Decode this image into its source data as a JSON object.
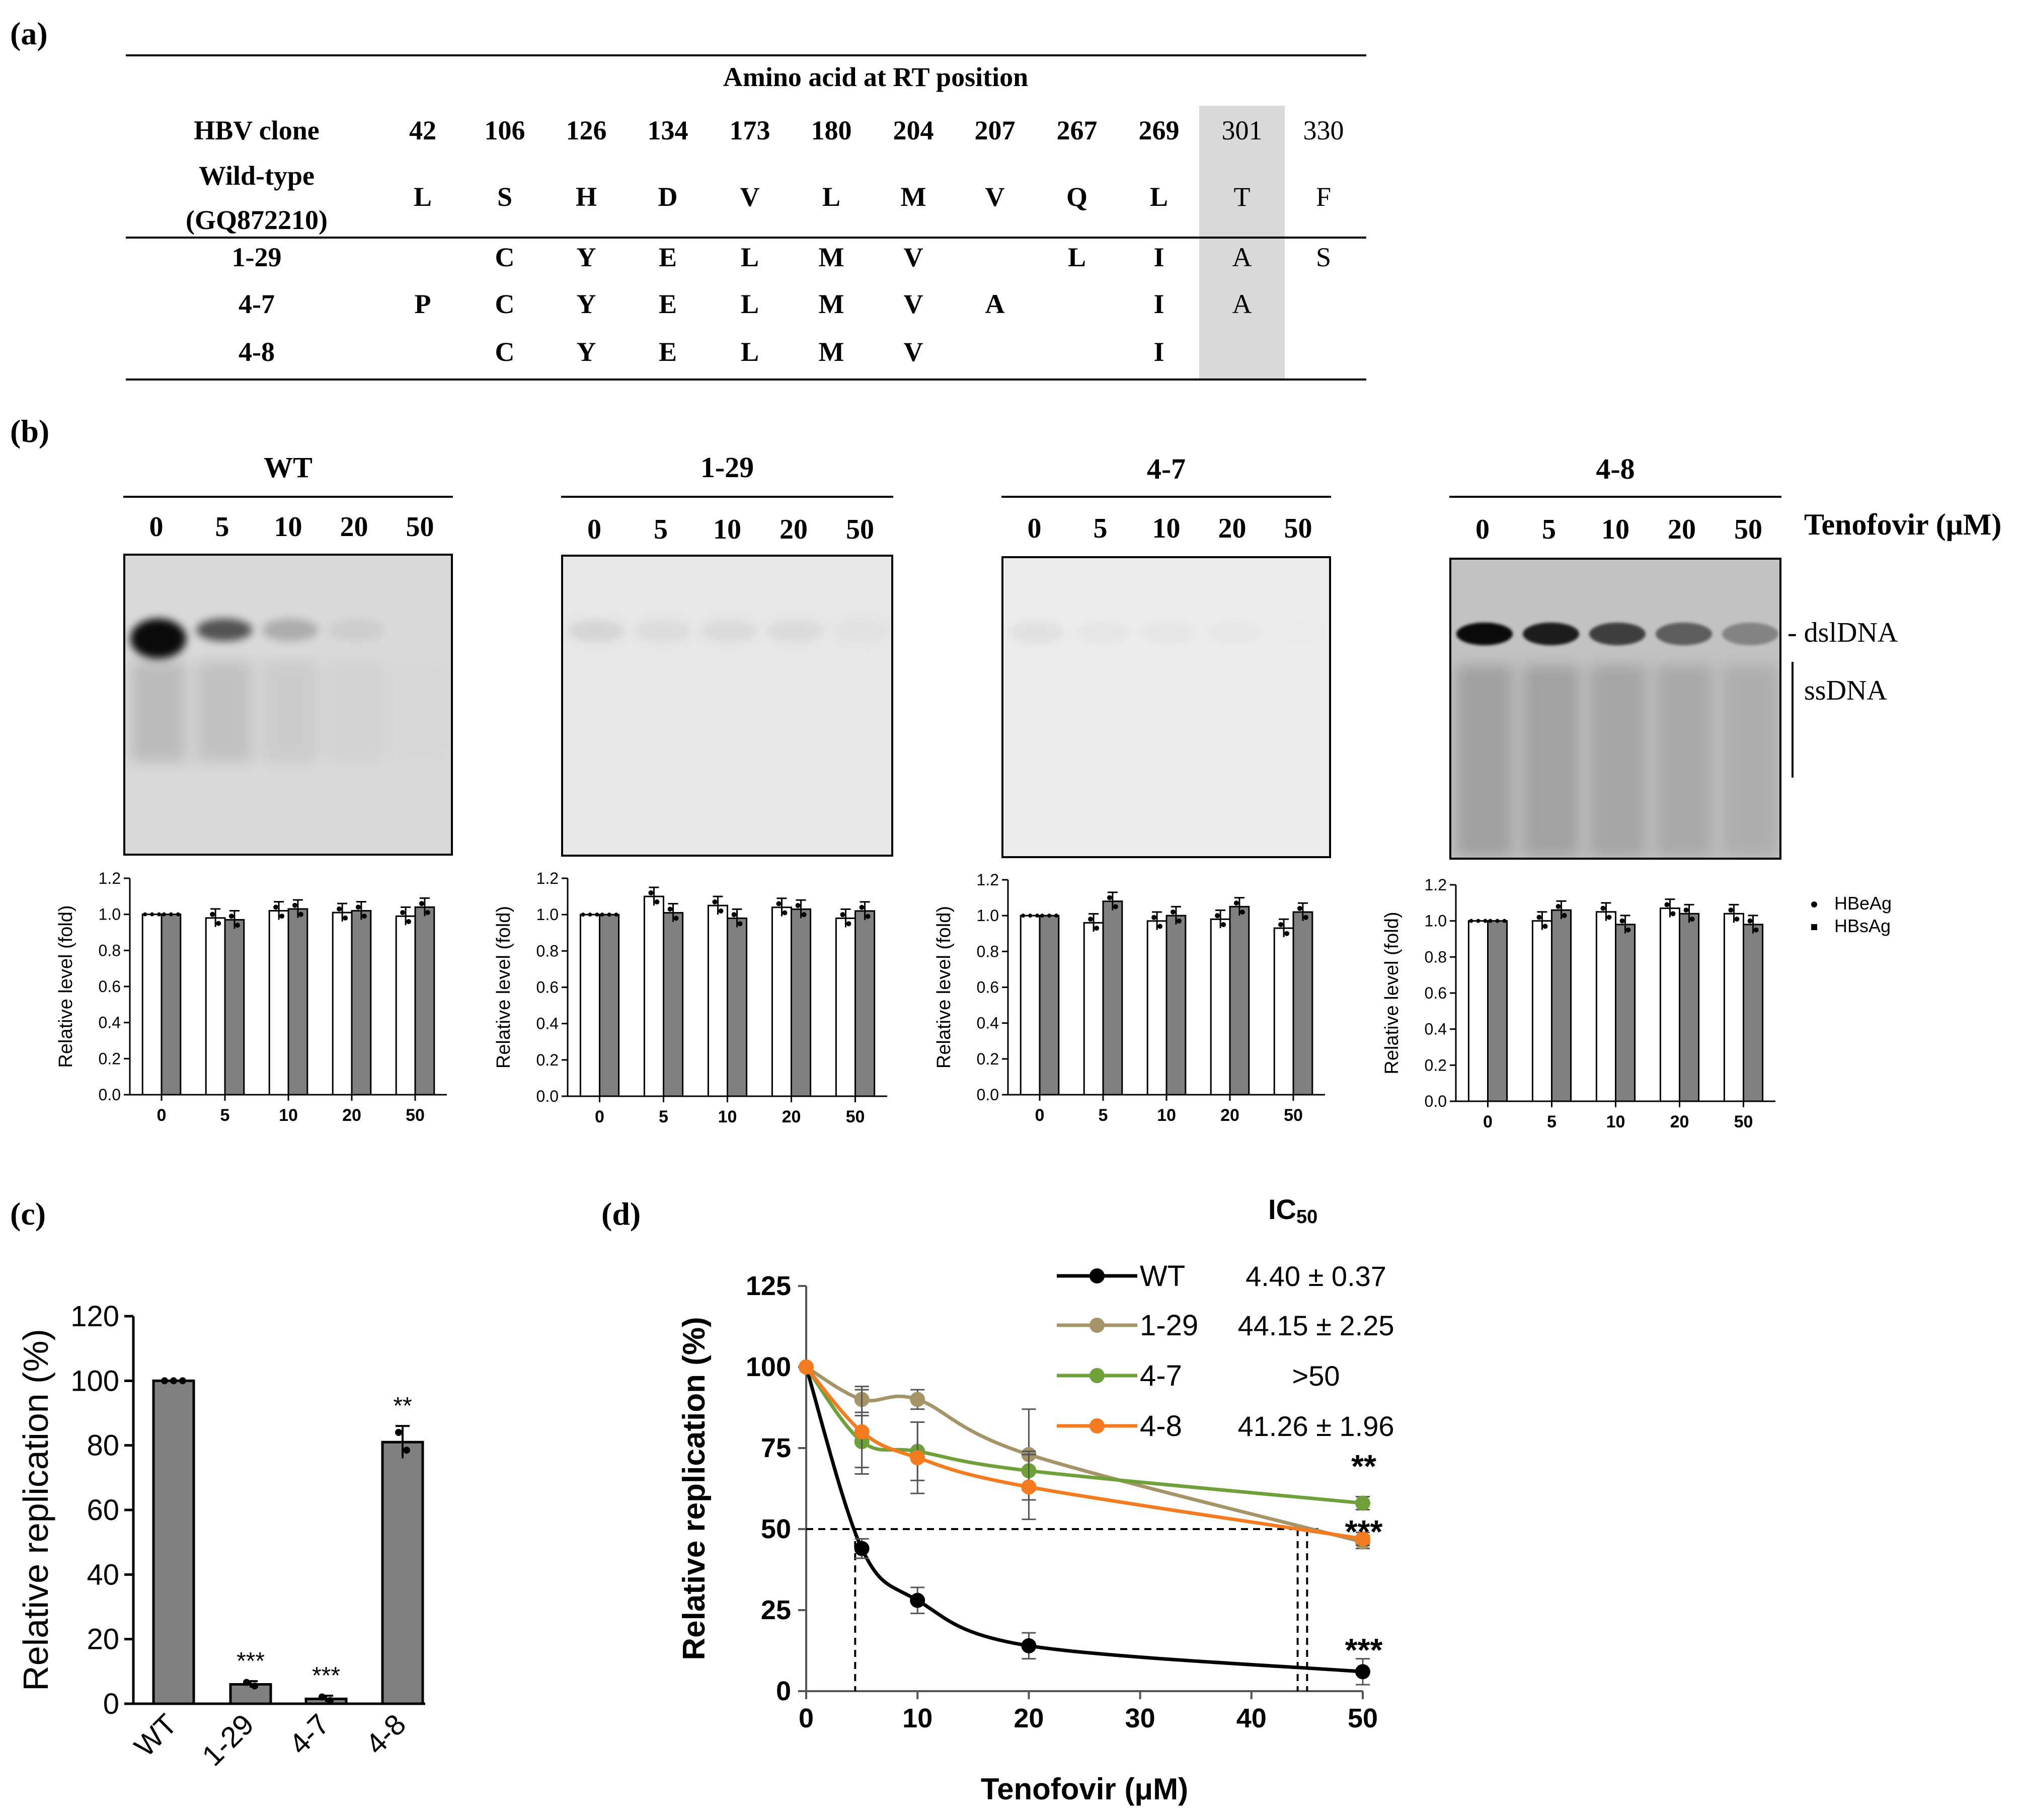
{
  "panel_labels": {
    "a": "(a)",
    "b": "(b)",
    "c": "(c)",
    "d": "(d)"
  },
  "table": {
    "title": "Amino acid at RT position",
    "clone_header": "HBV clone",
    "positions": [
      "42",
      "106",
      "126",
      "134",
      "173",
      "180",
      "204",
      "207",
      "267",
      "269",
      "301",
      "330"
    ],
    "wildtype_label_line1": "Wild-type",
    "wildtype_label_line2": "(GQ872210)",
    "wildtype": [
      "L",
      "S",
      "H",
      "D",
      "V",
      "L",
      "M",
      "V",
      "Q",
      "L",
      "T",
      "F"
    ],
    "rows": [
      {
        "clone": "1-29",
        "values": [
          "",
          "C",
          "Y",
          "E",
          "L",
          "M",
          "V",
          "",
          "L",
          "I",
          "A",
          "S"
        ]
      },
      {
        "clone": "4-7",
        "values": [
          "P",
          "C",
          "Y",
          "E",
          "L",
          "M",
          "V",
          "A",
          "",
          "I",
          "A",
          ""
        ]
      },
      {
        "clone": "4-8",
        "values": [
          "",
          "C",
          "Y",
          "E",
          "L",
          "M",
          "V",
          "",
          "",
          "I",
          "",
          ""
        ]
      }
    ],
    "highlight_color": "#d9d9d9"
  },
  "blots": {
    "axis_label": "Tenofovir (μM)",
    "concentrations": [
      "0",
      "5",
      "10",
      "20",
      "50"
    ],
    "band_dsl": "- dslDNA",
    "band_ss": "ssDNA",
    "panels": [
      {
        "name": "WT"
      },
      {
        "name": "1-29"
      },
      {
        "name": "4-7"
      },
      {
        "name": "4-8"
      }
    ],
    "legend": {
      "hbeag": "HBeAg",
      "hbsag": "HBsAg"
    }
  },
  "chart_data": [
    {
      "type": "bar",
      "panel": "WT",
      "categories": [
        "0",
        "5",
        "10",
        "20",
        "50"
      ],
      "series": [
        {
          "name": "HBeAg",
          "values": [
            1.0,
            0.98,
            1.02,
            1.01,
            0.99
          ]
        },
        {
          "name": "HBsAg",
          "values": [
            1.0,
            0.97,
            1.03,
            1.02,
            1.04
          ]
        }
      ],
      "ylabel": "Relative level (fold)",
      "ylim": [
        0,
        1.2
      ],
      "yticks": [
        "0.0",
        "0.2",
        "0.4",
        "0.6",
        "0.8",
        "1.0",
        "1.2"
      ]
    },
    {
      "type": "bar",
      "panel": "1-29",
      "categories": [
        "0",
        "5",
        "10",
        "20",
        "50"
      ],
      "series": [
        {
          "name": "HBeAg",
          "values": [
            1.0,
            1.1,
            1.05,
            1.04,
            0.98
          ]
        },
        {
          "name": "HBsAg",
          "values": [
            1.0,
            1.01,
            0.98,
            1.03,
            1.02
          ]
        }
      ],
      "ylabel": "Relative level (fold)",
      "ylim": [
        0,
        1.2
      ],
      "yticks": [
        "0.0",
        "0.2",
        "0.4",
        "0.6",
        "0.8",
        "1.0",
        "1.2"
      ]
    },
    {
      "type": "bar",
      "panel": "4-7",
      "categories": [
        "0",
        "5",
        "10",
        "20",
        "50"
      ],
      "series": [
        {
          "name": "HBeAg",
          "values": [
            1.0,
            0.96,
            0.97,
            0.98,
            0.93
          ]
        },
        {
          "name": "HBsAg",
          "values": [
            1.0,
            1.08,
            1.0,
            1.05,
            1.02
          ]
        }
      ],
      "ylabel": "Relative level (fold)",
      "ylim": [
        0,
        1.2
      ],
      "yticks": [
        "0.0",
        "0.2",
        "0.4",
        "0.6",
        "0.8",
        "1.0",
        "1.2"
      ]
    },
    {
      "type": "bar",
      "panel": "4-8",
      "categories": [
        "0",
        "5",
        "10",
        "20",
        "50"
      ],
      "series": [
        {
          "name": "HBeAg",
          "values": [
            1.0,
            1.0,
            1.05,
            1.07,
            1.04
          ]
        },
        {
          "name": "HBsAg",
          "values": [
            1.0,
            1.06,
            0.98,
            1.04,
            0.98
          ]
        }
      ],
      "ylabel": "Relative level (fold)",
      "ylim": [
        0,
        1.2
      ],
      "yticks": [
        "0.0",
        "0.2",
        "0.4",
        "0.6",
        "0.8",
        "1.0",
        "1.2"
      ]
    },
    {
      "type": "bar",
      "panel": "c",
      "categories": [
        "WT",
        "1-29",
        "4-7",
        "4-8"
      ],
      "values": [
        100,
        6,
        1.5,
        81
      ],
      "annotations": [
        "",
        "***",
        "***",
        "**"
      ],
      "ylabel": "Relative replication (%)",
      "ylim": [
        0,
        120
      ],
      "yticks": [
        "0",
        "20",
        "40",
        "60",
        "80",
        "100",
        "120"
      ]
    },
    {
      "type": "line",
      "panel": "d",
      "x": [
        0,
        5,
        10,
        20,
        50
      ],
      "series": [
        {
          "name": "WT",
          "color": "#000000",
          "values": [
            100,
            44,
            28,
            14,
            6
          ],
          "ic50": "4.40 ± 0.37"
        },
        {
          "name": "1-29",
          "color": "#a59468",
          "values": [
            100,
            90,
            90,
            73,
            46
          ],
          "ic50": "44.15 ± 2.25"
        },
        {
          "name": "4-7",
          "color": "#70a03a",
          "values": [
            100,
            77,
            74,
            68,
            58
          ],
          "ic50": ">50"
        },
        {
          "name": "4-8",
          "color": "#f47b20",
          "values": [
            100,
            80,
            72,
            63,
            47
          ],
          "ic50": "41.26 ± 1.96"
        }
      ],
      "ic50_header": "IC50",
      "ic50_header_main": "IC",
      "ic50_header_sub": "50",
      "xlabel": "Tenofovir (μM)",
      "ylabel": "Relative replication (%)",
      "xlim": [
        0,
        50
      ],
      "ylim": [
        0,
        125
      ],
      "xticks": [
        "0",
        "10",
        "20",
        "30",
        "40",
        "50"
      ],
      "yticks": [
        "0",
        "25",
        "50",
        "75",
        "100",
        "125"
      ],
      "annotations": [
        "**",
        "***",
        "***"
      ]
    }
  ]
}
